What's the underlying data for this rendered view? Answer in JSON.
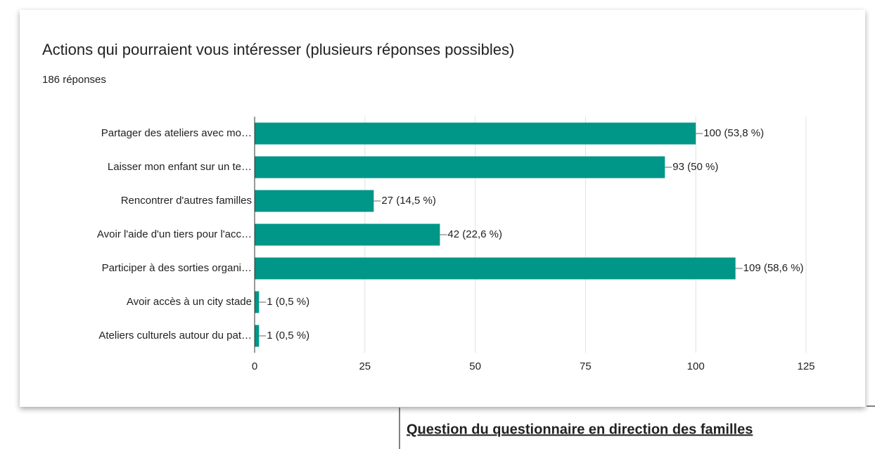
{
  "chart_data": {
    "type": "bar",
    "orientation": "horizontal",
    "title": "Actions qui pourraient vous intéresser (plusieurs réponses possibles)",
    "subtitle": "186 réponses",
    "categories": [
      "Partager des ateliers avec mo…",
      "Laisser mon enfant sur un te…",
      "Rencontrer d'autres familles",
      "Avoir l'aide d'un tiers pour l'acc…",
      "Participer à des sorties organi…",
      "Avoir accès à un city stade",
      "Ateliers culturels autour du pat…"
    ],
    "values": [
      100,
      93,
      27,
      42,
      109,
      1,
      1
    ],
    "value_labels": [
      "100 (53,8 %)",
      "93 (50 %)",
      "27 (14,5 %)",
      "42 (22,6 %)",
      "109 (58,6 %)",
      "1 (0,5 %)",
      "1 (0,5 %)"
    ],
    "color": "#009688",
    "xlim": [
      0,
      125
    ],
    "xticks": [
      0,
      25,
      50,
      75,
      100,
      125
    ],
    "grid": true
  },
  "caption": "Question du questionnaire en direction des familles"
}
